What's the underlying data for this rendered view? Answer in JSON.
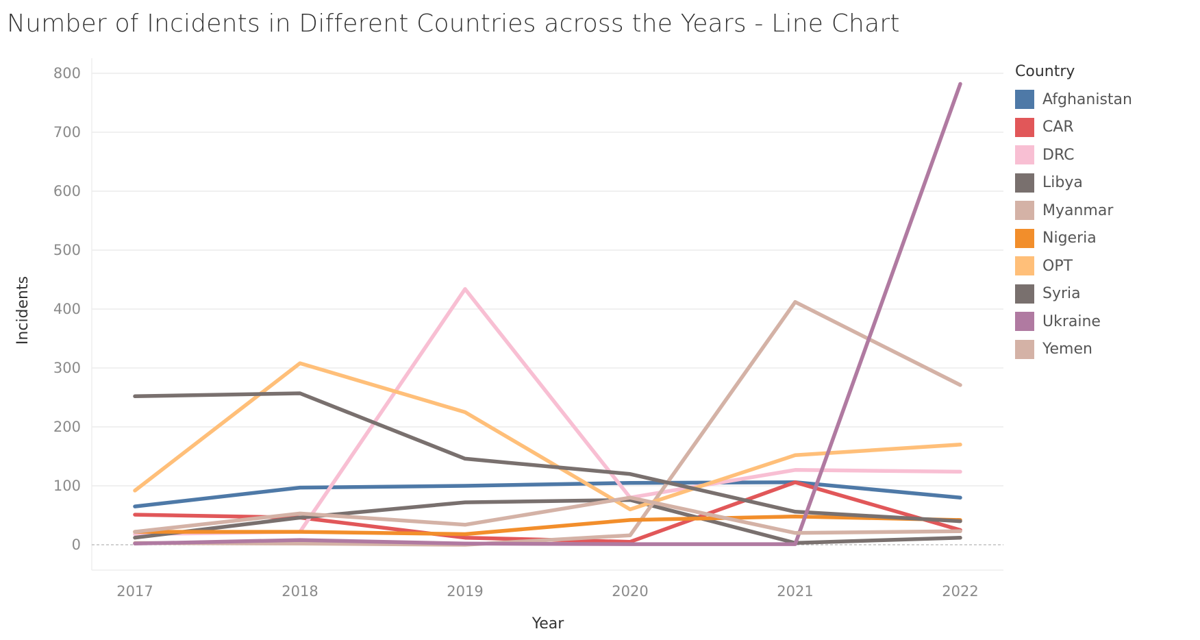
{
  "chart_data": {
    "type": "line",
    "title": "Number of Incidents in Different Countries across the Years - Line Chart",
    "xlabel": "Year",
    "ylabel": "Incidents",
    "x": [
      "2017",
      "2018",
      "2019",
      "2020",
      "2021",
      "2022"
    ],
    "ylim": [
      0,
      800
    ],
    "yticks": [
      0,
      100,
      200,
      300,
      400,
      500,
      600,
      700,
      800
    ],
    "grid": "horizontal",
    "legend_placement": "right",
    "legend_title": "Country",
    "series": [
      {
        "name": "Afghanistan",
        "color": "#4e79a7",
        "values": [
          65,
          97,
          100,
          105,
          106,
          80
        ]
      },
      {
        "name": "CAR",
        "color": "#e15759",
        "values": [
          51,
          46,
          12,
          5,
          106,
          25
        ]
      },
      {
        "name": "DRC",
        "color": "#f8bfd3",
        "values": [
          18,
          22,
          434,
          80,
          127,
          124
        ]
      },
      {
        "name": "Libya",
        "color": "#79706e",
        "values": [
          12,
          46,
          72,
          76,
          3,
          12
        ]
      },
      {
        "name": "Myanmar",
        "color": "#d4b2a6",
        "values": [
          3,
          2,
          0,
          16,
          412,
          271
        ]
      },
      {
        "name": "Nigeria",
        "color": "#f28e2b",
        "values": [
          22,
          22,
          18,
          42,
          48,
          42
        ]
      },
      {
        "name": "OPT",
        "color": "#ffbf79",
        "values": [
          92,
          308,
          225,
          60,
          152,
          170
        ]
      },
      {
        "name": "Syria",
        "color": "#79706e",
        "values": [
          252,
          257,
          146,
          120,
          56,
          40
        ]
      },
      {
        "name": "Ukraine",
        "color": "#b07aa1",
        "values": [
          2,
          8,
          2,
          1,
          1,
          782
        ]
      },
      {
        "name": "Yemen",
        "color": "#d4b2a6",
        "values": [
          22,
          53,
          34,
          80,
          20,
          23
        ]
      }
    ]
  }
}
